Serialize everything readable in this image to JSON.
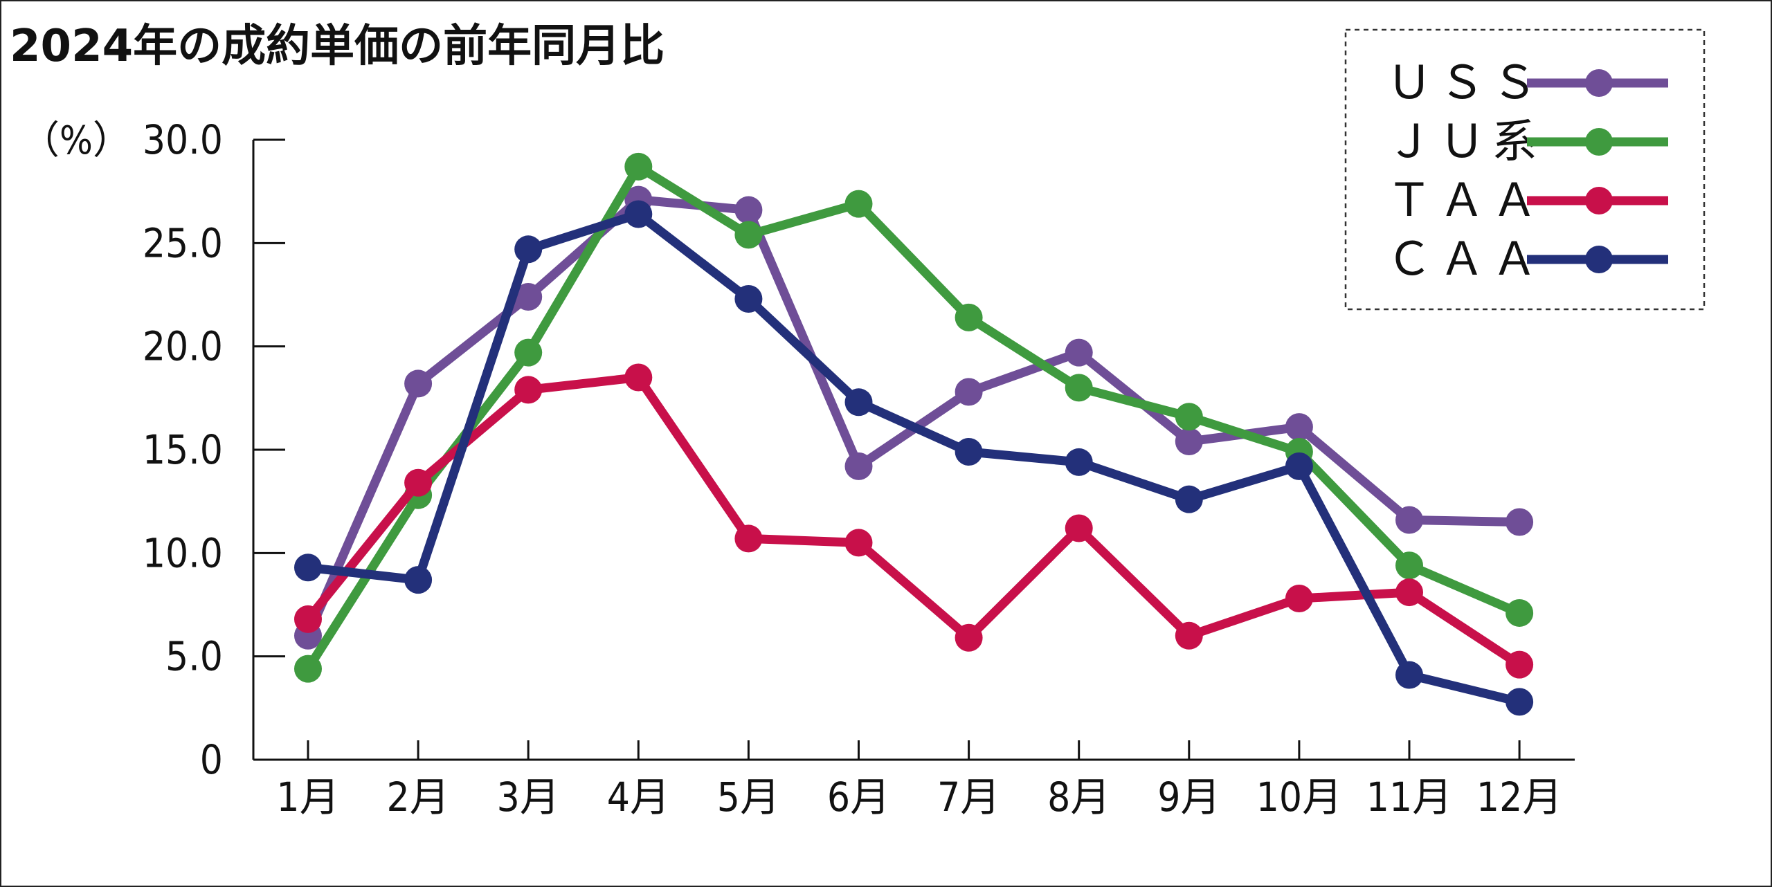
{
  "chart_data": {
    "type": "line",
    "title": "2024年の成約単価の前年同月比",
    "ylabel": "（%）",
    "xlabel": "",
    "ylim": [
      0,
      30
    ],
    "yticks": [
      "0",
      "5.0",
      "10.0",
      "15.0",
      "20.0",
      "25.0",
      "30.0"
    ],
    "categories": [
      "1月",
      "2月",
      "3月",
      "4月",
      "5月",
      "6月",
      "7月",
      "8月",
      "9月",
      "10月",
      "11月",
      "12月"
    ],
    "grid": false,
    "legend_position": "top-right",
    "series": [
      {
        "name": "ＵＳＳ",
        "color": "#6f4e97",
        "values": [
          6.0,
          18.2,
          22.4,
          27.1,
          26.6,
          14.2,
          17.8,
          19.7,
          15.4,
          16.1,
          11.6,
          11.5
        ]
      },
      {
        "name": "ＪＵ系",
        "color": "#3f9a3f",
        "values": [
          4.4,
          12.8,
          19.7,
          28.7,
          25.4,
          26.9,
          21.4,
          18.0,
          16.6,
          14.9,
          9.4,
          7.1
        ]
      },
      {
        "name": "ＴＡＡ",
        "color": "#c8104a",
        "values": [
          6.8,
          13.4,
          17.9,
          18.5,
          10.7,
          10.5,
          5.9,
          11.2,
          6.0,
          7.8,
          8.1,
          4.6
        ]
      },
      {
        "name": "ＣＡＡ",
        "color": "#23307a",
        "values": [
          9.3,
          8.7,
          24.7,
          26.4,
          22.3,
          17.3,
          14.9,
          14.4,
          12.6,
          14.2,
          4.1,
          2.8
        ]
      }
    ]
  }
}
